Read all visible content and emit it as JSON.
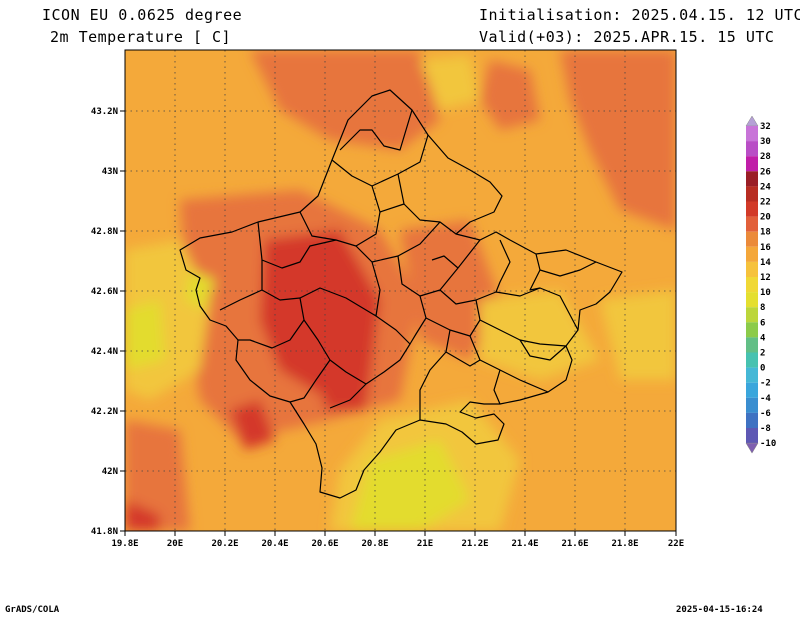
{
  "header": {
    "model": "ICON EU 0.0625 degree",
    "variable": "2m Temperature [ C]",
    "init": "Initialisation: 2025.04.15. 12 UTC",
    "valid": "Valid(+03): 2025.APR.15. 15 UTC"
  },
  "footer": {
    "software": "GrADS/COLA",
    "timestamp": "2025-04-15-16:24"
  },
  "axes": {
    "x_ticks": [
      "19.8E",
      "20E",
      "20.2E",
      "20.4E",
      "20.6E",
      "20.8E",
      "21E",
      "21.2E",
      "21.4E",
      "21.6E",
      "21.8E",
      "22E"
    ],
    "y_ticks": [
      "43.2N",
      "43N",
      "42.8N",
      "42.6N",
      "42.4N",
      "42.2N",
      "42N",
      "41.8N"
    ]
  },
  "colorbar": {
    "labels": [
      "32",
      "30",
      "28",
      "26",
      "24",
      "22",
      "20",
      "18",
      "16",
      "14",
      "12",
      "10",
      "8",
      "6",
      "4",
      "2",
      "0",
      "-2",
      "-4",
      "-6",
      "-8",
      "-10"
    ],
    "colors": [
      "#b5a0d6",
      "#c874d8",
      "#b94ec6",
      "#c01ea8",
      "#9a1e26",
      "#b82d22",
      "#d23a28",
      "#e2603a",
      "#eb8a3a",
      "#f4a73a",
      "#f6c23c",
      "#f0d836",
      "#e4df30",
      "#bcd63b",
      "#8ccb4a",
      "#62bf86",
      "#47c2b0",
      "#45b8d6",
      "#3aa6dc",
      "#3a8ed0",
      "#3f72c2",
      "#5e58b4",
      "#7f5fb0"
    ]
  },
  "legend_colors": {
    "hot": "#d4372a",
    "warm": "#e7743c",
    "mild": "#f4a93a",
    "cool": "#f2c63d",
    "cold": "#e3dc2e"
  }
}
